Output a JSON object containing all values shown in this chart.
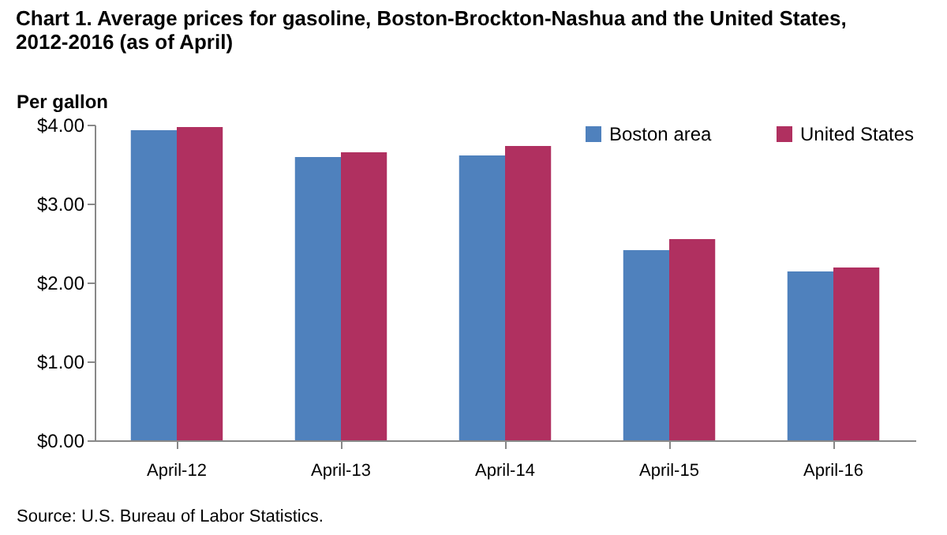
{
  "chart_data": {
    "type": "bar",
    "title": "Chart 1. Average prices for gasoline, Boston-Brockton-Nashua  and the United States, 2012-2016 (as of April)",
    "ylabel": "Per gallon",
    "categories": [
      "April-12",
      "April-13",
      "April-14",
      "April-15",
      "April-16"
    ],
    "series": [
      {
        "name": "Boston area",
        "color": "#4f81bd",
        "values": [
          3.93,
          3.59,
          3.61,
          2.41,
          2.14
        ]
      },
      {
        "name": "United States",
        "color": "#b03060",
        "values": [
          3.97,
          3.65,
          3.73,
          2.55,
          2.19
        ]
      }
    ],
    "ylim": [
      0,
      4
    ],
    "yticks": [
      {
        "value": 0,
        "label": "$0.00"
      },
      {
        "value": 1,
        "label": "$1.00"
      },
      {
        "value": 2,
        "label": "$2.00"
      },
      {
        "value": 3,
        "label": "$3.00"
      },
      {
        "value": 4,
        "label": "$4.00"
      }
    ],
    "grid": false,
    "legend": "top right",
    "annotations": [
      "Source: U.S. Bureau of Labor Statistics."
    ]
  }
}
